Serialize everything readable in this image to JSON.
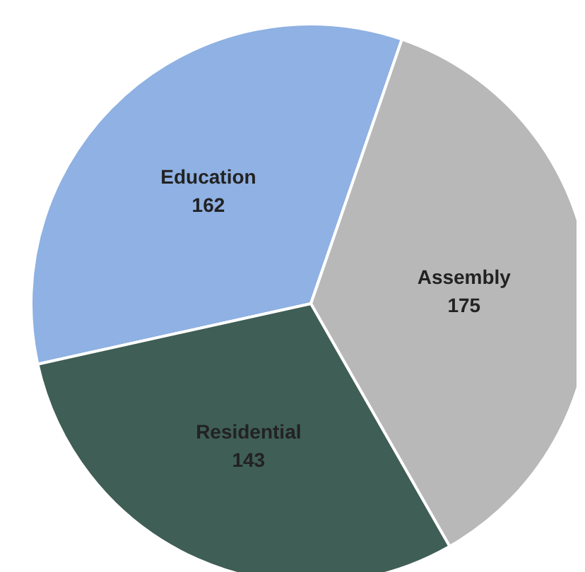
{
  "chart_data": {
    "type": "pie",
    "categories": [
      "Education",
      "Assembly",
      "Residential"
    ],
    "values": [
      162,
      175,
      143
    ],
    "colors": [
      "#8fb1e3",
      "#b8b8b8",
      "#3f5e55"
    ],
    "data_labels": true,
    "legend": false
  }
}
